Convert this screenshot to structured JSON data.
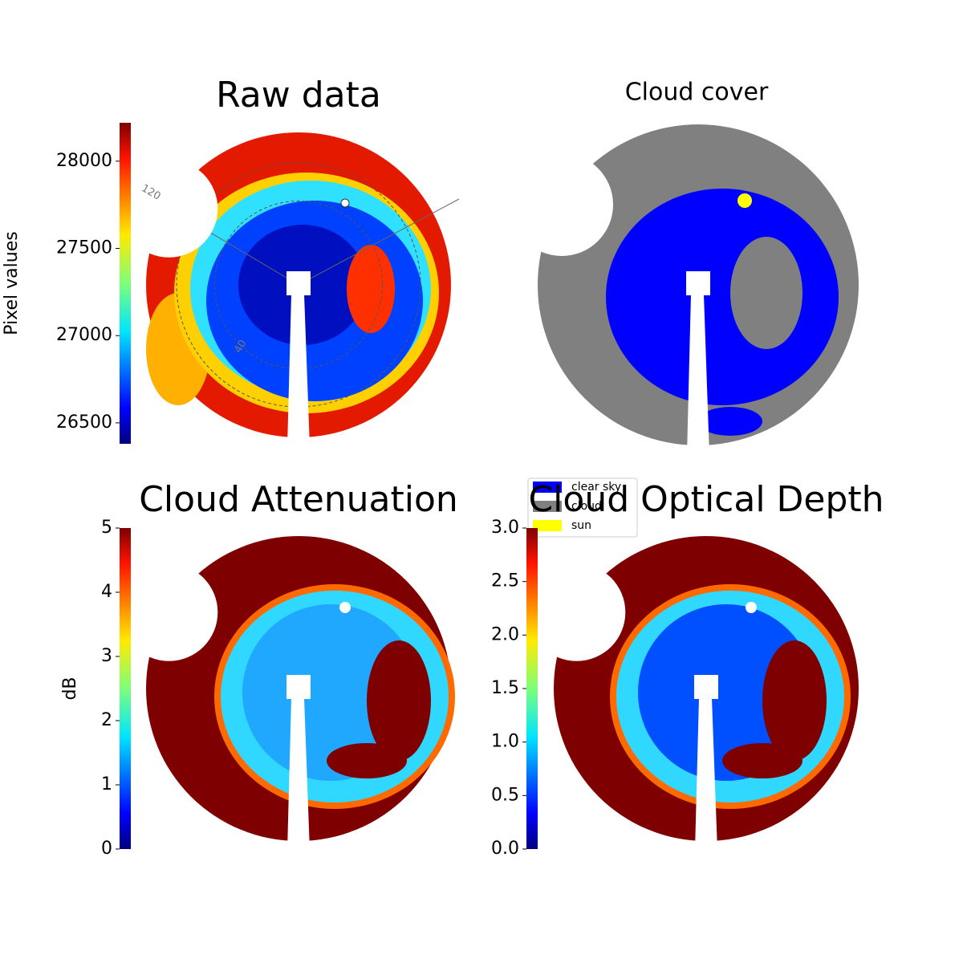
{
  "chart_data": [
    {
      "type": "heatmap",
      "title": "Raw data",
      "annotations": [
        "120",
        "40"
      ],
      "colorbar": {
        "label": "Pixel values",
        "colormap": "jet",
        "lim": [
          26380,
          28220
        ],
        "ticks": [
          26500,
          27000,
          27500,
          28000
        ]
      }
    },
    {
      "type": "categorical-map",
      "title": "Cloud cover",
      "legend": [
        {
          "name": "clear sky",
          "color": "#0000ff"
        },
        {
          "name": "cloud",
          "color": "#808080"
        },
        {
          "name": "sun",
          "color": "#ffff00"
        }
      ]
    },
    {
      "type": "heatmap",
      "title": "Cloud Attenuation",
      "colorbar": {
        "label": "dB",
        "colormap": "jet",
        "lim": [
          0,
          5
        ],
        "ticks": [
          0,
          1,
          2,
          3,
          4,
          5
        ]
      }
    },
    {
      "type": "heatmap",
      "title": "Cloud Optical Depth",
      "colorbar": {
        "colormap": "jet",
        "lim": [
          0,
          3
        ],
        "ticks": [
          {
            "value": 0,
            "label": "0.0"
          },
          0.5,
          {
            "value": 1,
            "label": "1.0"
          },
          1.5,
          {
            "value": 2,
            "label": "2.0"
          },
          2.5,
          {
            "value": 3,
            "label": "3.0"
          }
        ]
      }
    }
  ]
}
